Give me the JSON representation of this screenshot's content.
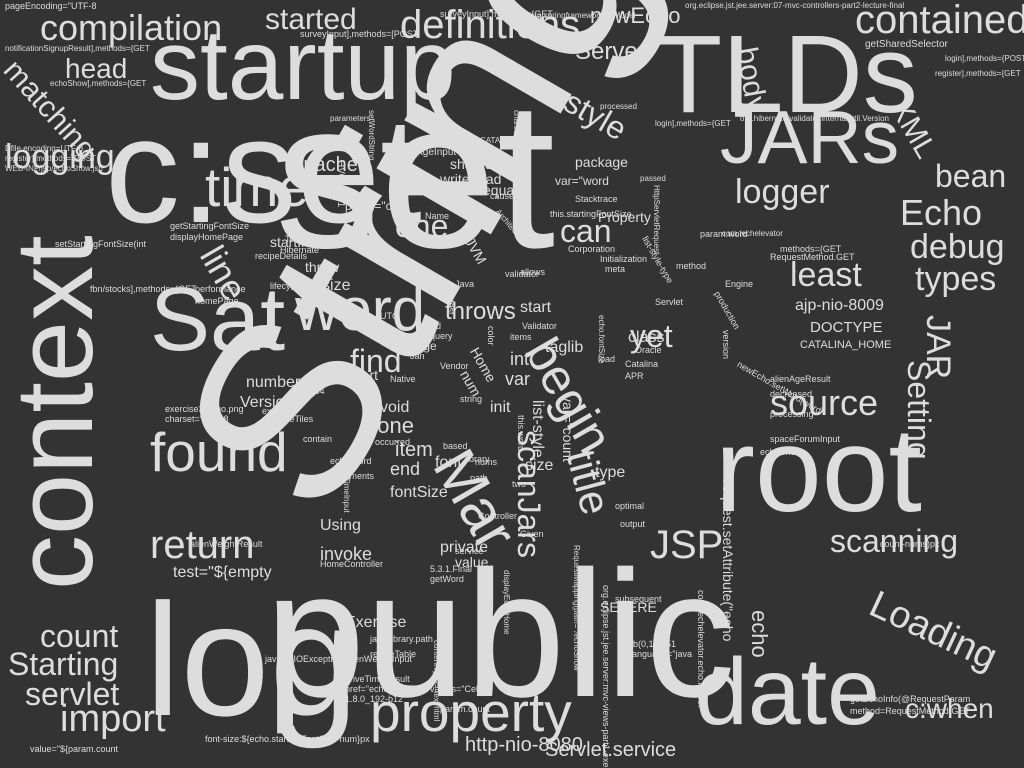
{
  "words": [
    "String",
    "public",
    "set",
    "log",
    "c:set",
    "root",
    "context",
    "date",
    "Sat",
    "startup",
    "TLDs",
    "word",
    "time",
    "JARs",
    "property",
    "found",
    "Mar",
    "begin",
    "compilation",
    "definitions",
    "contained",
    "return",
    "title",
    "scanJars",
    "JSP",
    "source",
    "logging",
    "logger",
    "Loading",
    "import",
    "count",
    "Starting",
    "servlet",
    "Echo",
    "debug",
    "least",
    "types",
    "matching",
    "head",
    "style",
    "body",
    "XML",
    "line",
    "one",
    "can",
    "find",
    "scanning",
    "JAR",
    "Setting",
    "bean",
    "c:when",
    "yet",
    "throws",
    "Server",
    "started",
    "newEcho",
    "Apache",
    "echo",
    "http-nio-8080",
    "Servlet.service",
    "request.setAttribute(\"echo",
    "test=\"${empty",
    "ajp-nio-8009",
    "DOCTYPE",
    "CATALINA_HOME",
    "taglib",
    "none",
    "item",
    "end",
    "fontSize",
    "invoke",
    "private",
    "value",
    "Using",
    "Exercise",
    "SEVERE",
    "class",
    "int",
    "var",
    "list-style",
    "var=\"count",
    "number",
    "Version",
    "Insert",
    "package",
    "shared",
    "prefix=\"c",
    "startInternal",
    "threw",
    "font-size",
    "bean",
    "equal",
    "write/read",
    "var=\"word",
    "Property",
    "recipeDetails",
    "Tomcat",
    "Hibernate",
    "JVM",
    "start",
    "HV000001",
    "performance",
    "lifecycleEvent",
    "homePage",
    "displayHomePage",
    "getStartingFontSize",
    "Stacktrace",
    "this.startingFontSize",
    "alienAgeInput",
    "setStartingFontSize(int",
    "fbn/stocks],methods={GET",
    "surveyInput],methods={GET",
    "surveyInput],methods=[POST",
    "pageEncoding=\"UTF-8",
    "notificationSignupResult],methods={GET",
    "org.springframework.ui.Model",
    "org.eclipse.jst.jee.server:07-mvc-controllers-part2-lecture-final",
    "getSharedSelector",
    "login],methods={POST",
    "register],methods={GET",
    "org.hibernate.validator.internal.util.Version",
    "echoShow],methods={GET",
    "Dfile.encoding=UTF-8",
    "register],methods={POST",
    "WEB-INF/jsp/echoShow.jsp",
    "CATALINA_BASE",
    "setWordString",
    "parameters",
    "charset=UTF-8",
    "processed",
    "login],methods={GET",
    "HttpServletRequest",
    "passed",
    "com.techelevator",
    "param.word",
    "methods={GET",
    "RequestMethod.GET",
    "alienAgeResult",
    "decreased",
    "newEcho.setWord(word",
    "spaceForumInput",
    "echoShow",
    "count-nums)px",
    "getEchoInfo(@RequestParam",
    "method=RequestMethod.GET",
    "font-size:${echo.startingFontSize-num}px",
    "value=\"${param.count",
    "com.techelevator.echo.model",
    "org.eclipse.jst.jee.server:mvc-views-part1-exercises",
    "rgb(0,122,51",
    "language=\"java",
    "RequestMapping(path=\"/echoShow",
    "alienWeightInput",
    "alienWeightResult",
    "recipeTable",
    "java.io.IOException",
    "driveTimeResult",
    "href=\"echoHome",
    "1.8.0_192-b12",
    "values=\"Celtics",
    "param.count",
    "contentType=\"text/html",
    "java.library.path",
    "5.3.1.Final",
    "getWord",
    "displayEchoHome",
    "HomeController",
    "exercise3-echo.png",
    "charset=\"UTF-8",
    "recipeTiles",
    "x86_64",
    "environments",
    "driveTimeInput",
    "Controller",
    "optimal",
    "output",
    "Given",
    "service",
    "subsequent",
    "processing",
    "this.word",
    "Initialization",
    "Corporation",
    "Oracle",
    "Catalina",
    "APR",
    "echo.fontSize",
    "Servlet",
    "production",
    "Engine",
    "validator",
    "Validator",
    "Vendor",
    "library",
    "Native",
    "example",
    "contain",
    "occurred",
    "based",
    "nums",
    "string",
    "path",
    "two",
    "font",
    "size",
    "type",
    "init",
    "void",
    "num",
    "Home",
    "page",
    "Add",
    "query",
    "Jan",
    "items",
    "meta",
    "allows",
    "color",
    "load",
    "test",
    "Name",
    "Java",
    "UTC",
    "Architecture",
    "cause",
    "method",
    "version",
    "echo.word",
    "list-style-type",
    "Tom"
  ]
}
